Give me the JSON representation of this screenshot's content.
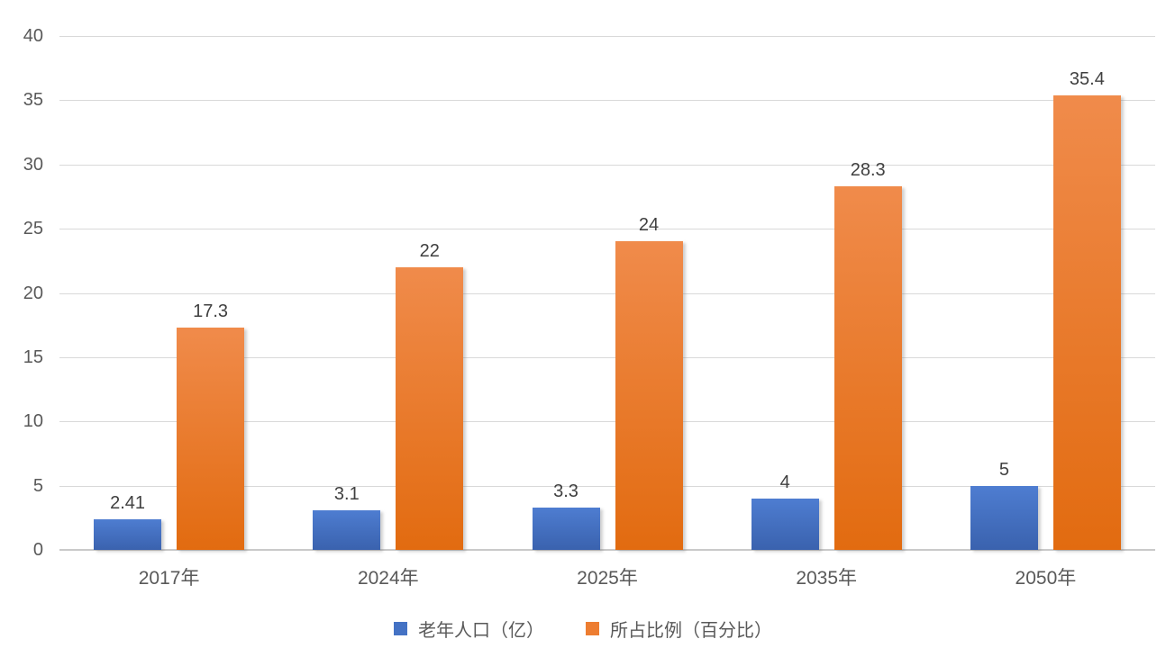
{
  "chart_data": {
    "type": "bar",
    "title": "",
    "xlabel": "",
    "ylabel": "",
    "categories": [
      "2017年",
      "2024年",
      "2025年",
      "2035年",
      "2050年"
    ],
    "series": [
      {
        "name": "老年人口（亿）",
        "values": [
          2.41,
          3.1,
          3.3,
          4,
          5
        ],
        "labels": [
          "2.41",
          "3.1",
          "3.3",
          "4",
          "5"
        ],
        "color": "#4472C4",
        "gradient_top": "#4e7dd1",
        "gradient_bottom": "#3a62ae"
      },
      {
        "name": "所占比例（百分比）",
        "values": [
          17.3,
          22,
          24,
          28.3,
          35.4
        ],
        "labels": [
          "17.3",
          "22",
          "24",
          "28.3",
          "35.4"
        ],
        "color": "#ED7D31",
        "gradient_top": "#f08b4b",
        "gradient_bottom": "#e26b10"
      }
    ],
    "ylim": [
      0,
      40
    ],
    "yticks": [
      0,
      5,
      10,
      15,
      20,
      25,
      30,
      35,
      40
    ],
    "grid": true,
    "legend_position": "bottom",
    "colors": {
      "gridline": "#d9d9d9",
      "axis_line": "#c9c9c9",
      "tick_label": "#595959",
      "data_label": "#404040",
      "background": "#ffffff"
    }
  }
}
